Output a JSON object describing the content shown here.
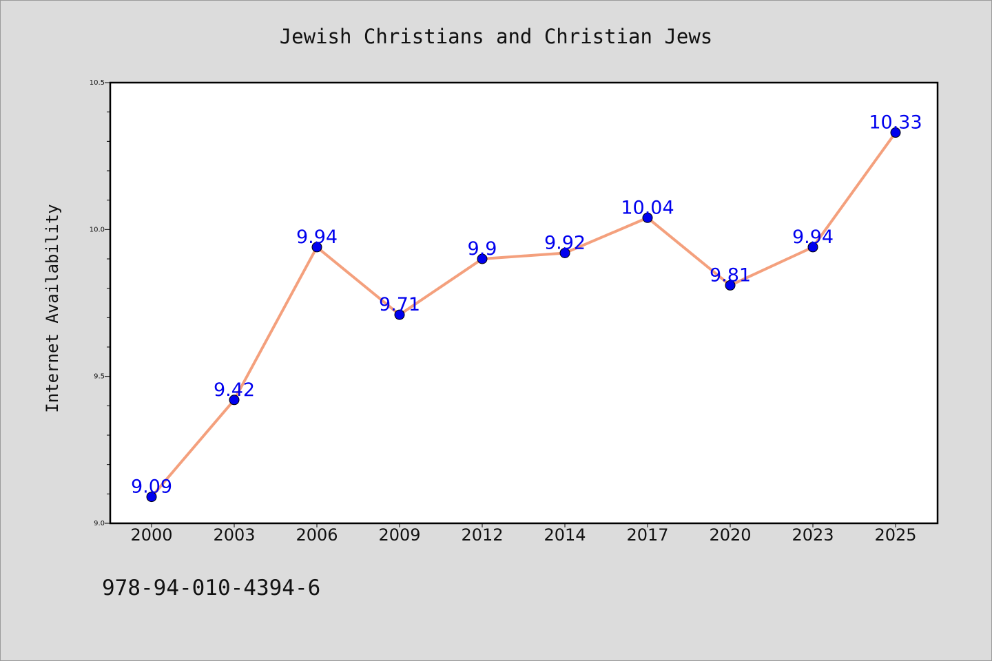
{
  "isbn": "978-94-010-4394-6",
  "chart_data": {
    "type": "line",
    "title": "Jewish Christians and Christian Jews",
    "xlabel": "",
    "ylabel": "Internet Availability",
    "categories": [
      "2000",
      "2003",
      "2006",
      "2009",
      "2012",
      "2014",
      "2017",
      "2020",
      "2023",
      "2025"
    ],
    "series": [
      {
        "values": [
          9.09,
          9.42,
          9.94,
          9.71,
          9.9,
          9.92,
          10.04,
          9.81,
          9.94,
          10.33
        ],
        "labels": [
          "9.09",
          "9.42",
          "9.94",
          "9.71",
          "9.9",
          "9.92",
          "10.04",
          "9.81",
          "9.94",
          "10.33"
        ]
      }
    ],
    "ylim": [
      9.0,
      10.5
    ],
    "yticks": [
      "9.0",
      "9.5",
      "10.0",
      "10.5"
    ],
    "grid": false,
    "colors": {
      "line": "#f4a07d",
      "marker": "#0000ee",
      "label": "#0000ee",
      "plot_background": "#ffffff",
      "page_background": "#dcdcdc"
    }
  }
}
